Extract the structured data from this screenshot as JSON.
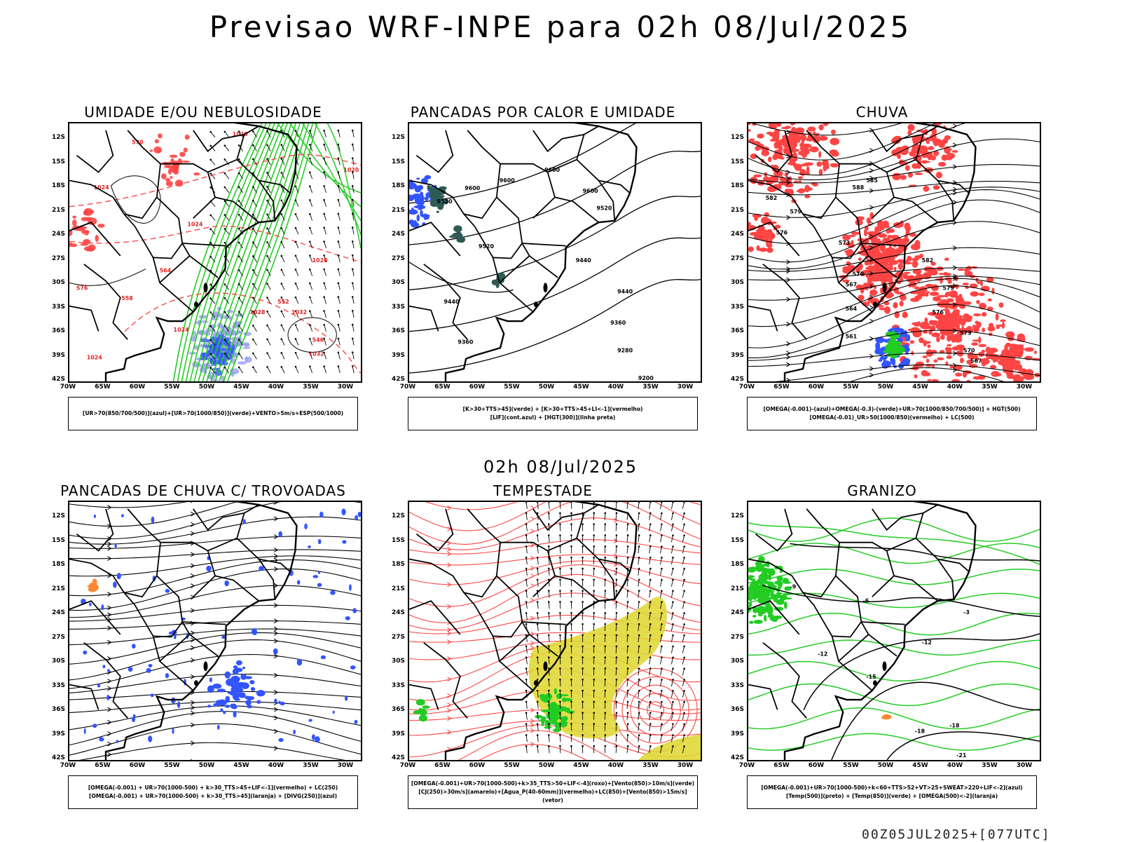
{
  "header": {
    "title": "Previsao WRF-INPE  para 02h 08/Jul/2025",
    "mid_title": "02h 08/Jul/2025",
    "footer": "00Z05JUL2025+[077UTC]"
  },
  "axes": {
    "lat_labels": [
      "12S",
      "15S",
      "18S",
      "21S",
      "24S",
      "27S",
      "30S",
      "33S",
      "36S",
      "39S",
      "42S"
    ],
    "lon_labels": [
      "70W",
      "65W",
      "60W",
      "55W",
      "50W",
      "45W",
      "40W",
      "35W",
      "30W"
    ]
  },
  "colors": {
    "blue": "#3355ff",
    "lightblue": "#9aa0ee",
    "green": "#22cc22",
    "red": "#ff4444",
    "yellow": "#e0d838",
    "darkteal": "#2f5a55",
    "black": "#000000"
  },
  "panels": [
    {
      "id": "umidade",
      "title": "UMIDADE E/OU NEBULOSIDADE",
      "legend": [
        "[UR>70(850/700/500)](azul)+[UR>70(1000/850)](verde)+VENTO>5m/s+ESP(500/1000)"
      ],
      "contour_labels": [
        "1020",
        "1020",
        "1024",
        "1024",
        "1024",
        "1028",
        "1028",
        "1032",
        "1032",
        "1024",
        "564",
        "570",
        "576",
        "546",
        "552",
        "558"
      ]
    },
    {
      "id": "pancadas-calor",
      "title": "PANCADAS POR CALOR E UMIDADE",
      "legend": [
        "[K>30+TTS>45](verde) + [K>30+TTS>45+LI<-1](vermelho)",
        "[LIF](cont.azul) + [HGT(300)](linha preta)"
      ],
      "contour_labels": [
        "9600",
        "9600",
        "9600",
        "9600",
        "9520",
        "9520",
        "9520",
        "9440",
        "9440",
        "9440",
        "9360",
        "9360",
        "9280",
        "9200"
      ]
    },
    {
      "id": "chuva",
      "title": "CHUVA",
      "legend": [
        "[OMEGA(-0.001)-(azul)+OMEGA(-0.3)-(verde)+UR>70(1000/850/700/500)] + HGT(500)",
        "[OMEGA(-0.01)_UR>50(1000/850)(vermelho) + LC(500)"
      ],
      "contour_labels": [
        "588",
        "585",
        "582",
        "579",
        "576",
        "573",
        "570",
        "567",
        "564",
        "561",
        "582",
        "579",
        "576",
        "573",
        "570",
        "567"
      ]
    },
    {
      "id": "trovoadas",
      "title": "PANCADAS DE CHUVA C/ TROVOADAS",
      "legend": [
        "[OMEGA(-0.001) + UR>70(1000-500) + k>30_TTS>45+LIF<-1](vermelho) + LC(250)",
        "[OMEGA(-0.001) + UR>70(1000-500) + k>30_TTS>45](laranja) + [DIVG(250)](azul)"
      ],
      "contour_labels": []
    },
    {
      "id": "tempestade",
      "title": "TEMPESTADE",
      "legend": [
        "[OMEGA(-0.001)+UR>70(1000-500)+k>35_TTS>50+LIF<-4](roxo)+[Vento(850)>10m/s](verde)",
        "[CJ(250)>30m/s](amarelo)+[Agua_P(40-60mm)](vermelho)+LC(850)+[Vento(850)>15m/s](vetor)"
      ],
      "contour_labels": []
    },
    {
      "id": "granizo",
      "title": "GRANIZO",
      "legend": [
        "[OMEGA(-0.001)+UR>70(1000-500)+k<60+TTS>52+VT>25+SWEAT>220+LIF<-2](azul)",
        "[Temp(500)](preto) + [Temp(850)](verde) + [OMEGA(500)<-2](laranja)"
      ],
      "contour_labels": [
        "-9",
        "-6",
        "-3",
        "-12",
        "-12",
        "-15",
        "-18",
        "-18",
        "-21"
      ]
    }
  ]
}
